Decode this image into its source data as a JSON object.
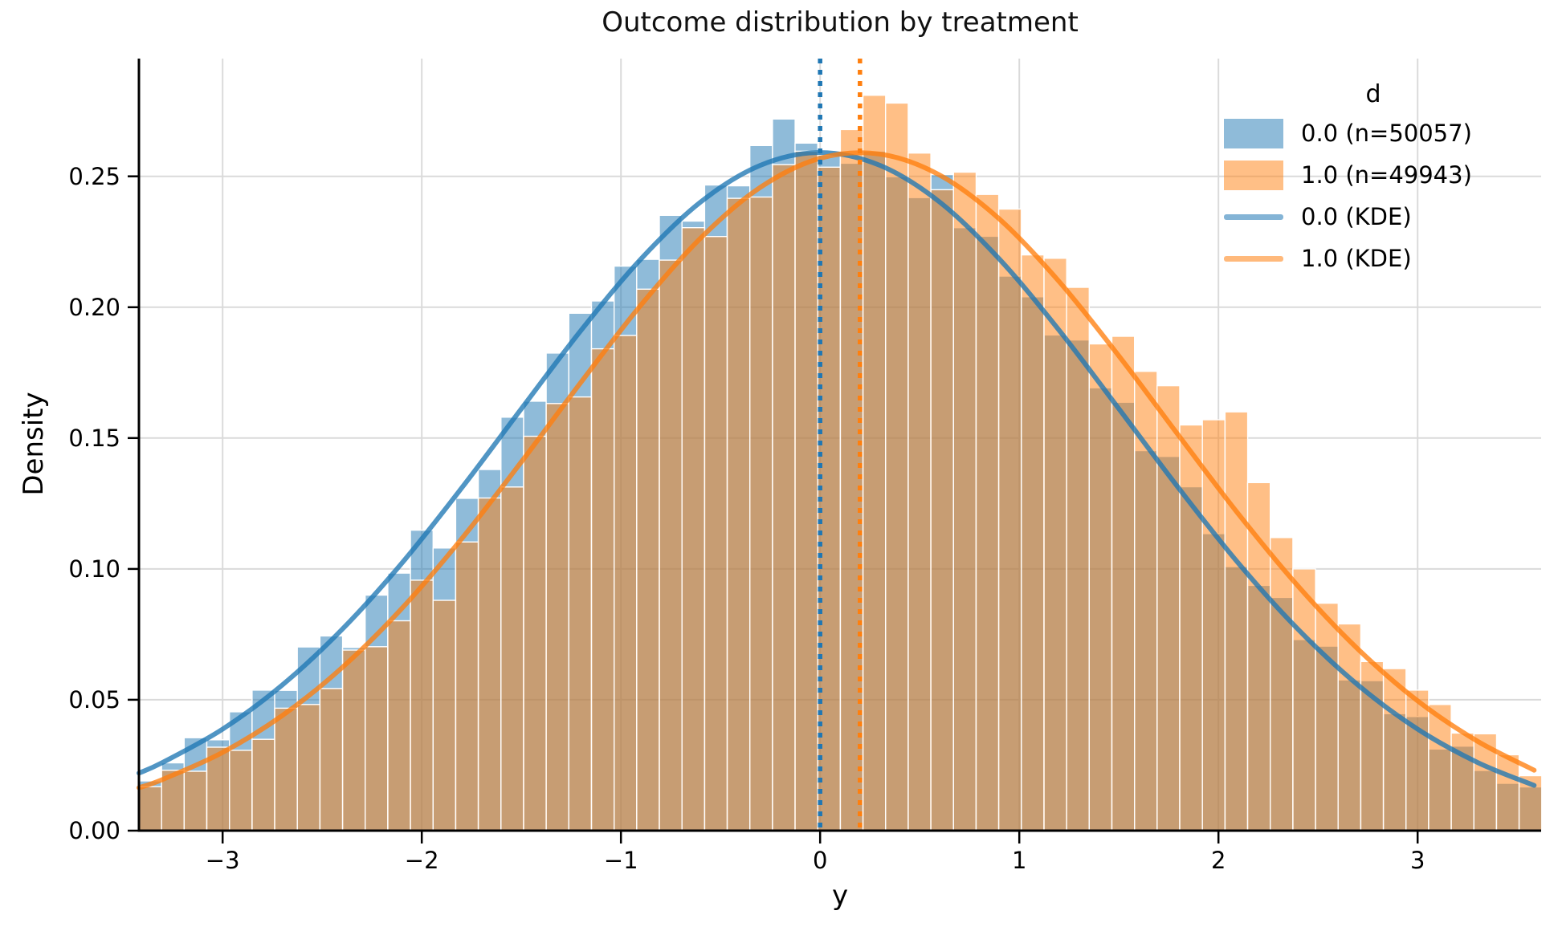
{
  "figure": {
    "title": "Outcome distribution by treatment",
    "xlabel": "y",
    "ylabel": "Density",
    "legend": {
      "title": "d",
      "entries": [
        {
          "type": "patch",
          "label": "0.0 (n=50057)",
          "color": "rgba(31,119,180,0.5)"
        },
        {
          "type": "patch",
          "label": "1.0 (n=49943)",
          "color": "rgba(255,127,14,0.5)"
        },
        {
          "type": "line",
          "label": "0.0 (KDE)",
          "color": "rgba(31,119,180,0.55)"
        },
        {
          "type": "line",
          "label": "1.0 (KDE)",
          "color": "rgba(255,127,14,0.55)"
        }
      ]
    }
  },
  "chart_data": {
    "type": "histogram+kde",
    "title": "Outcome distribution by treatment",
    "xlabel": "y",
    "ylabel": "Density",
    "xlim": [
      -3.42,
      3.62
    ],
    "ylim": [
      0,
      0.295
    ],
    "grid": true,
    "grid_color": "#dadada",
    "x_ticks": [
      -3,
      -2,
      -1,
      0,
      1,
      2,
      3
    ],
    "x_tick_labels": [
      "−3",
      "−2",
      "−1",
      "0",
      "1",
      "2",
      "3"
    ],
    "y_ticks": [
      0.0,
      0.05,
      0.1,
      0.15,
      0.2,
      0.25
    ],
    "y_tick_labels": [
      "0.00",
      "0.05",
      "0.10",
      "0.15",
      "0.20",
      "0.25"
    ],
    "bin_start": -3.42,
    "bin_width": 0.1136,
    "bar_edge_color": "#ffffff",
    "series": [
      {
        "name": "0.0 (n=50057)",
        "fill": "rgba(31,119,180,0.5)",
        "values": [
          0.019,
          0.0259,
          0.0355,
          0.0347,
          0.0454,
          0.0537,
          0.0536,
          0.0702,
          0.0744,
          0.07,
          0.09,
          0.0984,
          0.1148,
          0.108,
          0.127,
          0.138,
          0.158,
          0.1641,
          0.1825,
          0.1977,
          0.2024,
          0.2157,
          0.2183,
          0.2351,
          0.2329,
          0.2467,
          0.2464,
          0.2618,
          0.2719,
          0.2627,
          0.2581,
          0.255,
          0.2596,
          0.2499,
          0.2419,
          0.2507,
          0.2304,
          0.2271,
          0.2119,
          0.204,
          0.1894,
          0.1875,
          0.1692,
          0.1637,
          0.1452,
          0.143,
          0.1314,
          0.1135,
          0.1009,
          0.0937,
          0.0891,
          0.073,
          0.0705,
          0.0576,
          0.0573,
          0.0447,
          0.0436,
          0.0312,
          0.0323,
          0.023,
          0.0181,
          0.0167
        ]
      },
      {
        "name": "1.0 (n=49943)",
        "fill": "rgba(255,127,14,0.5)",
        "values": [
          0.0168,
          0.0231,
          0.0227,
          0.0319,
          0.0307,
          0.0349,
          0.0468,
          0.0482,
          0.0543,
          0.069,
          0.0703,
          0.0802,
          0.0957,
          0.088,
          0.1103,
          0.1271,
          0.1313,
          0.1507,
          0.1632,
          0.1657,
          0.1841,
          0.1892,
          0.2069,
          0.218,
          0.2304,
          0.227,
          0.2416,
          0.2421,
          0.2545,
          0.2596,
          0.2535,
          0.2679,
          0.281,
          0.278,
          0.2589,
          0.2449,
          0.2516,
          0.2431,
          0.2375,
          0.22,
          0.2187,
          0.2076,
          0.186,
          0.1889,
          0.1755,
          0.17,
          0.155,
          0.157,
          0.16,
          0.133,
          0.112,
          0.1,
          0.0869,
          0.079,
          0.0646,
          0.0619,
          0.0537,
          0.0482,
          0.0373,
          0.037,
          0.029,
          0.021
        ]
      }
    ],
    "kde": {
      "x": [
        -3.42,
        -3.3,
        -3.0,
        -2.7,
        -2.4,
        -2.1,
        -1.8,
        -1.5,
        -1.2,
        -0.9,
        -0.6,
        -0.3,
        0.0,
        0.3,
        0.6,
        0.9,
        1.2,
        1.5,
        1.8,
        2.1,
        2.4,
        2.7,
        3.0,
        3.3,
        3.585
      ],
      "series": [
        {
          "name": "0.0 (KDE)",
          "color": "rgba(31,119,180,0.78)",
          "mean": 0.0,
          "sigma": 1.54,
          "y": [
            0.022,
            0.0261,
            0.0388,
            0.0557,
            0.0769,
            0.1022,
            0.1309,
            0.1612,
            0.1912,
            0.2184,
            0.2402,
            0.2542,
            0.2591,
            0.2542,
            0.2402,
            0.2184,
            0.1912,
            0.1612,
            0.1309,
            0.1022,
            0.0769,
            0.0557,
            0.0388,
            0.0261,
            0.0173
          ]
        },
        {
          "name": "1.0 (KDE)",
          "color": "rgba(255,127,14,0.78)",
          "mean": 0.2,
          "sigma": 1.54,
          "y": [
            0.0164,
            0.0196,
            0.0299,
            0.044,
            0.0623,
            0.0849,
            0.1115,
            0.1409,
            0.1714,
            0.2008,
            0.2264,
            0.2458,
            0.2569,
            0.2585,
            0.2505,
            0.2337,
            0.2098,
            0.1814,
            0.151,
            0.121,
            0.0934,
            0.0694,
            0.0496,
            0.0342,
            0.0231
          ]
        }
      ]
    },
    "mean_lines": [
      {
        "name": "group-0-mean",
        "x": 0.0,
        "color": "#1f77b4"
      },
      {
        "name": "group-1-mean",
        "x": 0.2,
        "color": "#ff7f0e"
      }
    ],
    "accent_colors": {
      "blue": "#1f77b4",
      "orange": "#ff7f0e"
    }
  }
}
